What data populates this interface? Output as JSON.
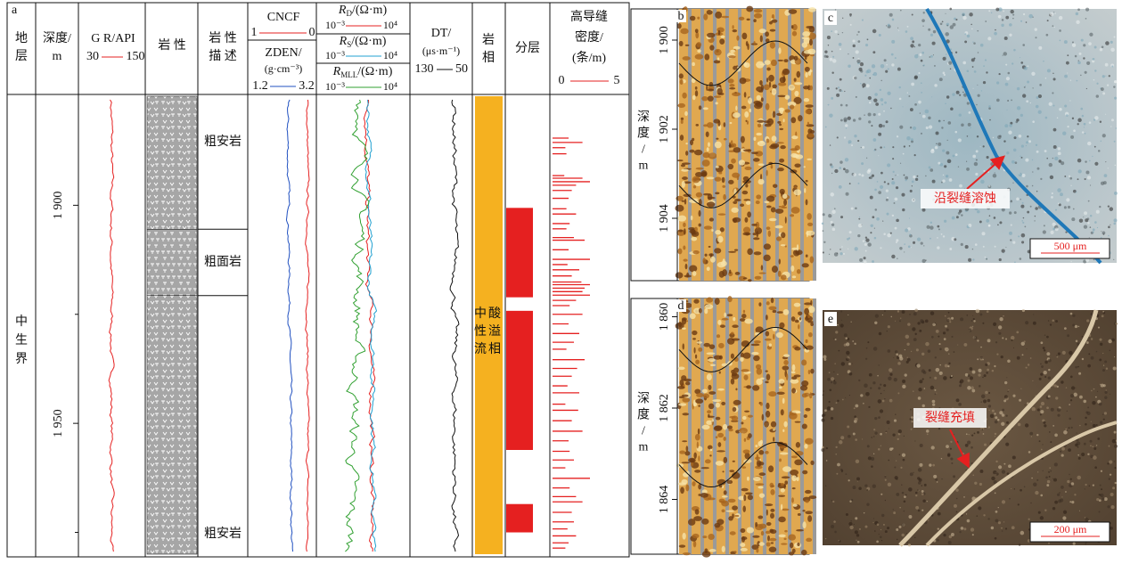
{
  "panel_a": {
    "label": "a",
    "stratum_header": [
      "地",
      "层"
    ],
    "depth_header": [
      "深度/",
      "m"
    ],
    "gr": {
      "title": "G R/API",
      "range": [
        30,
        150
      ]
    },
    "lith_header": "岩 性",
    "desc_header": [
      "岩 性",
      "描 述"
    ],
    "cncf": {
      "title": "CNCF",
      "range": [
        1,
        0
      ]
    },
    "zden": {
      "title": "ZDEN/",
      "unit": "(g·cm⁻³)",
      "range": [
        1.2,
        3.2
      ]
    },
    "rd": {
      "symbol": "R",
      "sub": "D",
      "unit": "/(Ω·m)",
      "range": [
        {
          "value": 0.001,
          "label": "10⁻³"
        },
        {
          "value": 10000,
          "label": "10⁴"
        }
      ]
    },
    "rs": {
      "symbol": "R",
      "sub": "S",
      "unit": "/(Ω·m)",
      "range": [
        {
          "value": 0.001,
          "label": "10⁻³"
        },
        {
          "value": 10000,
          "label": "10⁴"
        }
      ]
    },
    "rmll": {
      "symbol": "R",
      "sub": "MLL",
      "unit": "/(Ω·m)",
      "range": [
        {
          "value": 0.001,
          "label": "10⁻³"
        },
        {
          "value": 10000,
          "label": "10⁴"
        }
      ]
    },
    "dt": {
      "title": "DT/",
      "unit": "(μs·m⁻¹)",
      "range": [
        130,
        50
      ]
    },
    "facies_header": [
      "岩",
      "相"
    ],
    "layer_header": "分层",
    "fracture_header": {
      "lines": [
        "高导缝",
        "密度/",
        "(条/m)"
      ],
      "range": [
        0,
        5
      ]
    },
    "stratum": [
      "中",
      "生",
      "界"
    ],
    "depth_lim": [
      1875,
      1980
    ],
    "depth_ticks": [
      {
        "value": 1900,
        "label": "1 900"
      },
      {
        "value": 1950,
        "label": "1 950"
      }
    ],
    "depth_minor_ticks": [
      1925,
      1975
    ],
    "lithology": [
      {
        "name": "粗安岩",
        "top": 1875,
        "bottom": 1905.5,
        "pattern": "tvt"
      },
      {
        "name": "粗面岩",
        "top": 1905.5,
        "bottom": 1920.7,
        "pattern": "ttt"
      },
      {
        "name": "粗安岩",
        "top": 1920.7,
        "bottom": 1980,
        "pattern": "tvt"
      }
    ],
    "facies": [
      "中酸",
      "性溢",
      "流相"
    ],
    "layers": [
      {
        "top": 1900.6,
        "bottom": 1921.1
      },
      {
        "top": 1924.2,
        "bottom": 1956.1
      },
      {
        "top": 1968.5,
        "bottom": 1975
      }
    ],
    "fracture": {
      "depths": [
        1884.6,
        1885.6,
        1886.8,
        1888.2,
        1893.2,
        1893.8,
        1894.6,
        1895.4,
        1896.6,
        1898.4,
        1900.8,
        1902,
        1904.2,
        1905.4,
        1907.4,
        1908,
        1910.2,
        1912.4,
        1913.6,
        1914.8,
        1916.2,
        1917.6,
        1918.2,
        1919,
        1919.8,
        1920.6,
        1921.8,
        1923,
        1925,
        1927.2,
        1929.4,
        1931.4,
        1933,
        1935.4,
        1937.4,
        1939.2,
        1941.4,
        1943,
        1945.6,
        1947,
        1949.4,
        1951.8,
        1954,
        1956.4,
        1958.4,
        1960.2,
        1962.6,
        1964.8,
        1966.8,
        1968,
        1970.4,
        1972.6,
        1974.2,
        1975.8,
        1977.4,
        1978.6
      ],
      "values": [
        1.5,
        2.8,
        1.2,
        1.3,
        1.1,
        2.8,
        3.5,
        2.2,
        1.8,
        1.5,
        1.3,
        2.2,
        1.6,
        1.3,
        2,
        3,
        1.5,
        3.5,
        1.4,
        2.5,
        1.8,
        2.7,
        3.5,
        3,
        2.8,
        3.5,
        2.2,
        1.6,
        2.8,
        1.5,
        2.5,
        2,
        1.3,
        3,
        2.3,
        1.8,
        1.4,
        2.5,
        1.2,
        2.4,
        1.8,
        2.8,
        1.5,
        1.6,
        2,
        1.2,
        3.5,
        1.6,
        2.2,
        2.8,
        1.8,
        2,
        1.4,
        2.2,
        1.5,
        1.2
      ]
    }
  },
  "panel_b": {
    "label": "b",
    "depth_title": [
      "深",
      "度",
      "/",
      "m"
    ],
    "depth_lim": [
      1899.3,
      1905.4
    ],
    "depth_ticks": [
      {
        "value": 1900,
        "label": "1 900"
      },
      {
        "value": 1902,
        "label": "1 902"
      },
      {
        "value": 1904,
        "label": "1 904"
      }
    ]
  },
  "panel_c": {
    "label": "c",
    "annotation": "沿裂缝溶蚀",
    "scale_bar": "500 μm"
  },
  "panel_d": {
    "label": "d",
    "depth_title": [
      "深",
      "度",
      "/",
      "m"
    ],
    "depth_lim": [
      1859.6,
      1865.2
    ],
    "depth_ticks": [
      {
        "value": 1860,
        "label": "1 860"
      },
      {
        "value": 1862,
        "label": "1 862"
      },
      {
        "value": 1864,
        "label": "1 864"
      }
    ]
  },
  "panel_e": {
    "label": "e",
    "annotation": "裂缝充填",
    "scale_bar": "200 μm"
  }
}
